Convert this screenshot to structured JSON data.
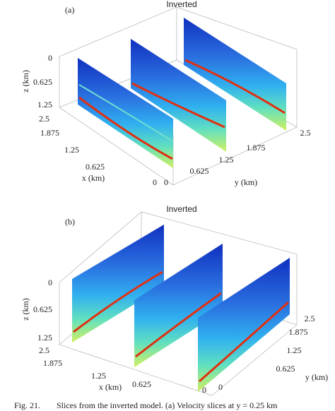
{
  "panels": [
    {
      "label": "(a)",
      "title": "Inverted",
      "z_label": "z (km)",
      "x_label": "x (km)",
      "y_label": "y (km)",
      "z_ticks": [
        "0",
        "0.625",
        "1.25"
      ],
      "x_ticks": [
        "2.5",
        "1.875",
        "1.25",
        "0.625",
        "0"
      ],
      "y_ticks": [
        "0",
        "0.625",
        "1.25",
        "1.875",
        "2.5"
      ]
    },
    {
      "label": "(b)",
      "title": "Inverted",
      "z_label": "z (km)",
      "x_label": "x (km)",
      "y_label": "y (km)",
      "z_ticks": [
        "0",
        "0.625",
        "1.25"
      ],
      "x_ticks": [
        "2.5",
        "1.875",
        "1.25",
        "0.625",
        "0"
      ],
      "y_ticks": [
        "0",
        "0.625",
        "1.25",
        "1.875",
        "2.5"
      ]
    }
  ],
  "caption": {
    "fig": "Fig. 21.",
    "text": "Slices from the inverted model. (a) Velocity slices at y = 0.25 km"
  }
}
